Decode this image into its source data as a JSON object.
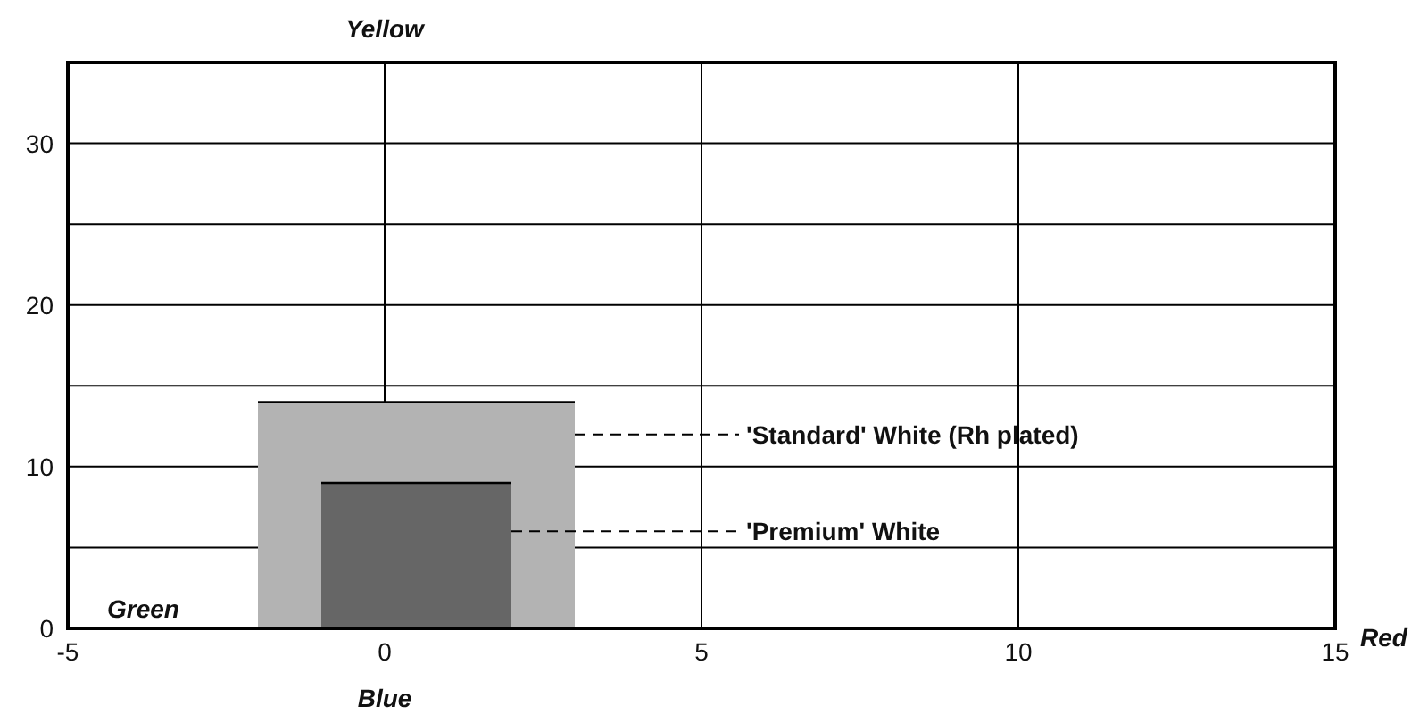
{
  "chart_data": {
    "type": "area",
    "series": [
      {
        "color": "#b3b3b3",
        "x": [
          -2,
          3
        ],
        "values": [
          14,
          14
        ]
      },
      {
        "color": "#666666",
        "x": [
          -1,
          2
        ],
        "values": [
          9,
          9
        ]
      }
    ],
    "xlim": [
      -5,
      15
    ],
    "xticks": [
      -5,
      0,
      5,
      10,
      15
    ],
    "ylim": [
      0,
      35
    ],
    "yticks": [
      0,
      {
        "value": 5,
        "label": null
      },
      10,
      {
        "value": 15,
        "label": null
      },
      20,
      {
        "value": 25,
        "label": null
      },
      30,
      {
        "value": 35,
        "label": null
      }
    ],
    "grid": true,
    "annotations": [
      "Yellow",
      "Blue",
      "Green",
      "Red",
      {
        "text": "'Standard' White (Rh plated)",
        "x": 3,
        "y": 12
      },
      {
        "text": "'Premium' White",
        "x": 2,
        "y": 6
      }
    ]
  }
}
